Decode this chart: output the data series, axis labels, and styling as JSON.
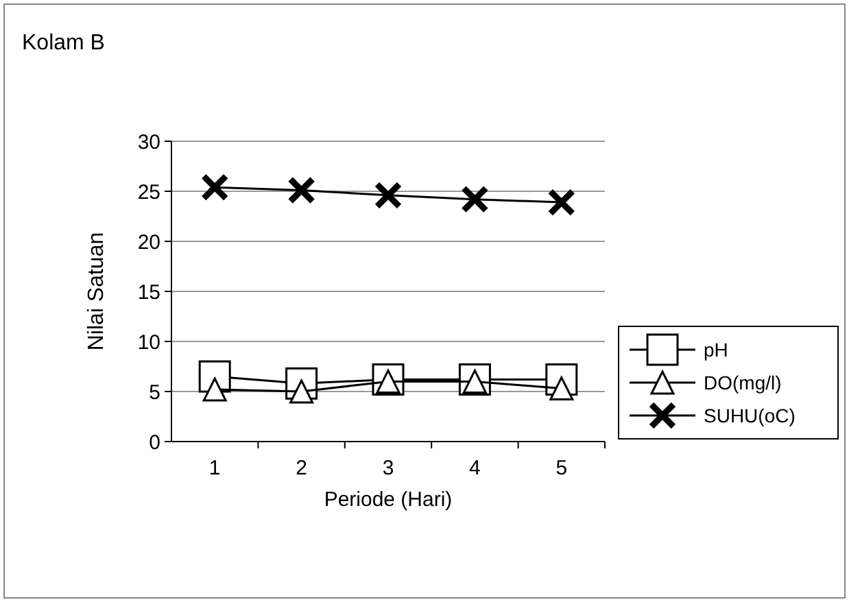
{
  "chart_data": {
    "type": "line",
    "title": "Kolam B",
    "xlabel": "Periode (Hari)",
    "ylabel": "Nilai Satuan",
    "categories": [
      "1",
      "2",
      "3",
      "4",
      "5"
    ],
    "series": [
      {
        "name": "pH",
        "color": "#000000",
        "marker": "square",
        "values": [
          6.5,
          5.8,
          6.2,
          6.2,
          6.2
        ]
      },
      {
        "name": "DO(mg/l)",
        "color": "#000000",
        "marker": "triangle",
        "values": [
          5.2,
          5.0,
          6.0,
          6.0,
          5.3
        ]
      },
      {
        "name": "SUHU(oC)",
        "color": "#000000",
        "marker": "cross",
        "values": [
          25.4,
          25.1,
          24.6,
          24.2,
          23.9
        ]
      }
    ],
    "ylim": [
      0,
      30
    ],
    "yticks": [
      0,
      5,
      10,
      15,
      20,
      25,
      30
    ],
    "grid": "y",
    "legend": "right"
  }
}
